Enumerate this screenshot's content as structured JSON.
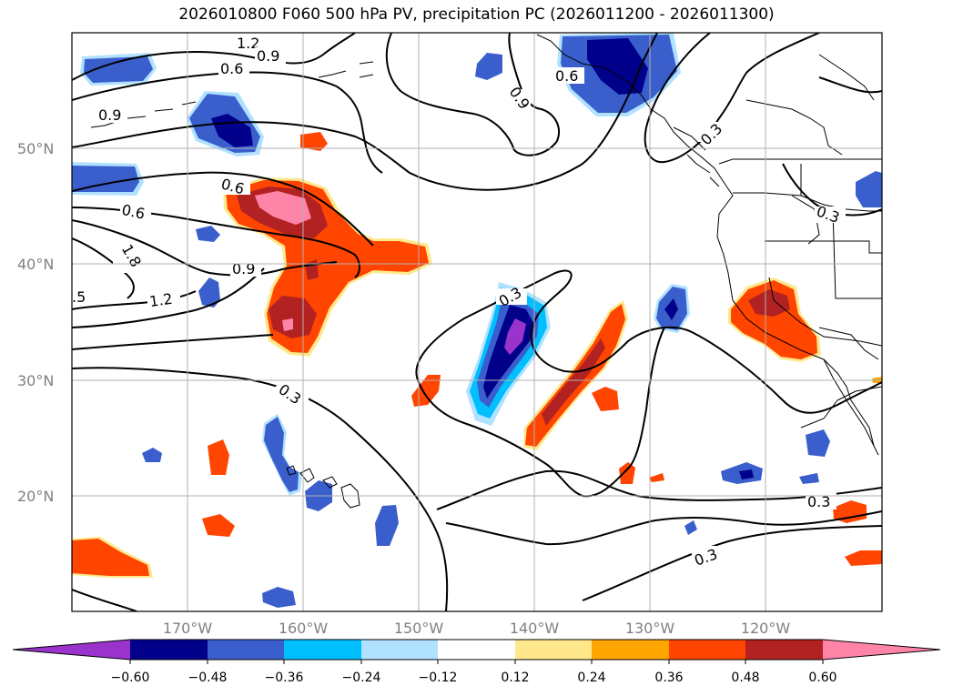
{
  "title": "2026010800 F060 500 hPa PV, precipitation PC (2026011200 - 2026011300)",
  "map": {
    "lat_labels": [
      "50°N",
      "40°N",
      "30°N",
      "20°N"
    ],
    "lon_labels": [
      "170°W",
      "160°W",
      "150°W",
      "140°W",
      "130°W",
      "120°W"
    ],
    "gridlines": true,
    "extent": {
      "lon_min": -180,
      "lon_max": -110,
      "lat_min": 10,
      "lat_max": 60
    }
  },
  "contour_labels": [
    "1.2",
    "0.9",
    "0.6",
    "0.9",
    "0.6",
    "0.9",
    "0.6",
    "0.6",
    "1.8",
    "0.9",
    "1.2",
    ".5",
    "0.3",
    "0.3",
    "0.3",
    "0.3",
    "0.3",
    "0.3"
  ],
  "colorbar": {
    "ticks": [
      "−0.60",
      "−0.48",
      "−0.36",
      "−0.24",
      "−0.12",
      "0.12",
      "0.24",
      "0.36",
      "0.48",
      "0.60"
    ],
    "colors": [
      "#9933cc",
      "#00008b",
      "#3a5fcd",
      "#00bfff",
      "#b0e2ff",
      "#ffffff",
      "#ffe88c",
      "#ffa500",
      "#ff4500",
      "#b22222",
      "#ff85a8"
    ]
  }
}
